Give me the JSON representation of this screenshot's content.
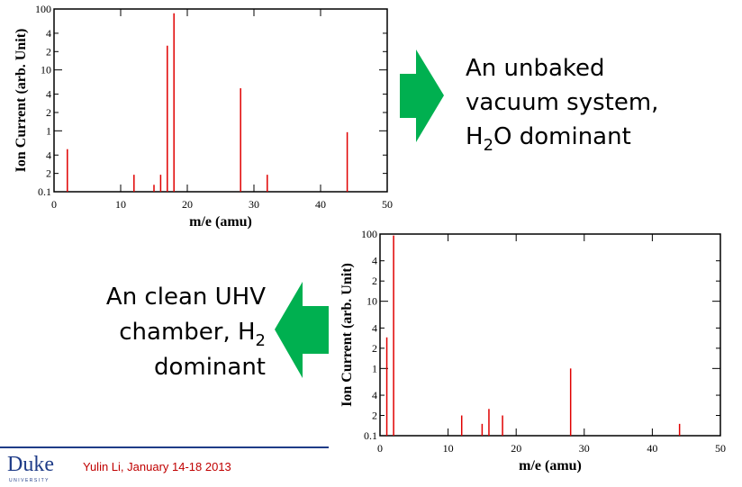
{
  "chart_data": [
    {
      "type": "stem",
      "color": "#e00000",
      "xlabel": "m/e (amu)",
      "ylabel": "Ion Current (arb. Unit)",
      "x": [
        2,
        12,
        15,
        16,
        17,
        18,
        28,
        32,
        44
      ],
      "values": [
        0.5,
        0.19,
        0.13,
        0.19,
        25,
        85,
        5,
        0.19,
        0.95
      ],
      "xlim": [
        0,
        50
      ],
      "xticks": [
        0,
        10,
        20,
        30,
        40,
        50
      ],
      "ylim": [
        0.1,
        100
      ],
      "log_y": true,
      "yticks": [
        0.1,
        {
          "value": 0.2,
          "label": "2"
        },
        {
          "value": 0.4,
          "label": "4"
        },
        1,
        {
          "value": 2,
          "label": "2"
        },
        {
          "value": 4,
          "label": "4"
        },
        10,
        {
          "value": 20,
          "label": "2"
        },
        {
          "value": 40,
          "label": "4"
        },
        100
      ]
    },
    {
      "type": "stem",
      "color": "#e00000",
      "xlabel": "m/e (amu)",
      "ylabel": "Ion Current (arb. Unit)",
      "x": [
        1,
        2,
        12,
        15,
        16,
        18,
        28,
        44
      ],
      "values": [
        2.9,
        95,
        0.2,
        0.15,
        0.25,
        0.2,
        1,
        0.15
      ],
      "xlim": [
        0,
        50
      ],
      "xticks": [
        0,
        10,
        20,
        30,
        40,
        50
      ],
      "ylim": [
        0.1,
        100
      ],
      "log_y": true,
      "yticks": [
        0.1,
        {
          "value": 0.2,
          "label": "2"
        },
        {
          "value": 0.4,
          "label": "4"
        },
        1,
        {
          "value": 2,
          "label": "2"
        },
        {
          "value": 4,
          "label": "4"
        },
        10,
        {
          "value": 20,
          "label": "2"
        },
        {
          "value": 40,
          "label": "4"
        },
        100
      ]
    }
  ],
  "slide": {
    "note1": [
      "An unbaked",
      "vacuum system,",
      "H",
      "2",
      "O dominant"
    ],
    "note2": [
      "An clean UHV",
      "chamber, H",
      "2",
      "dominant"
    ],
    "logo": "Duke",
    "logo_sub": "UNIVERSITY",
    "footer": "Yulin Li,  January 14-18 2013"
  }
}
